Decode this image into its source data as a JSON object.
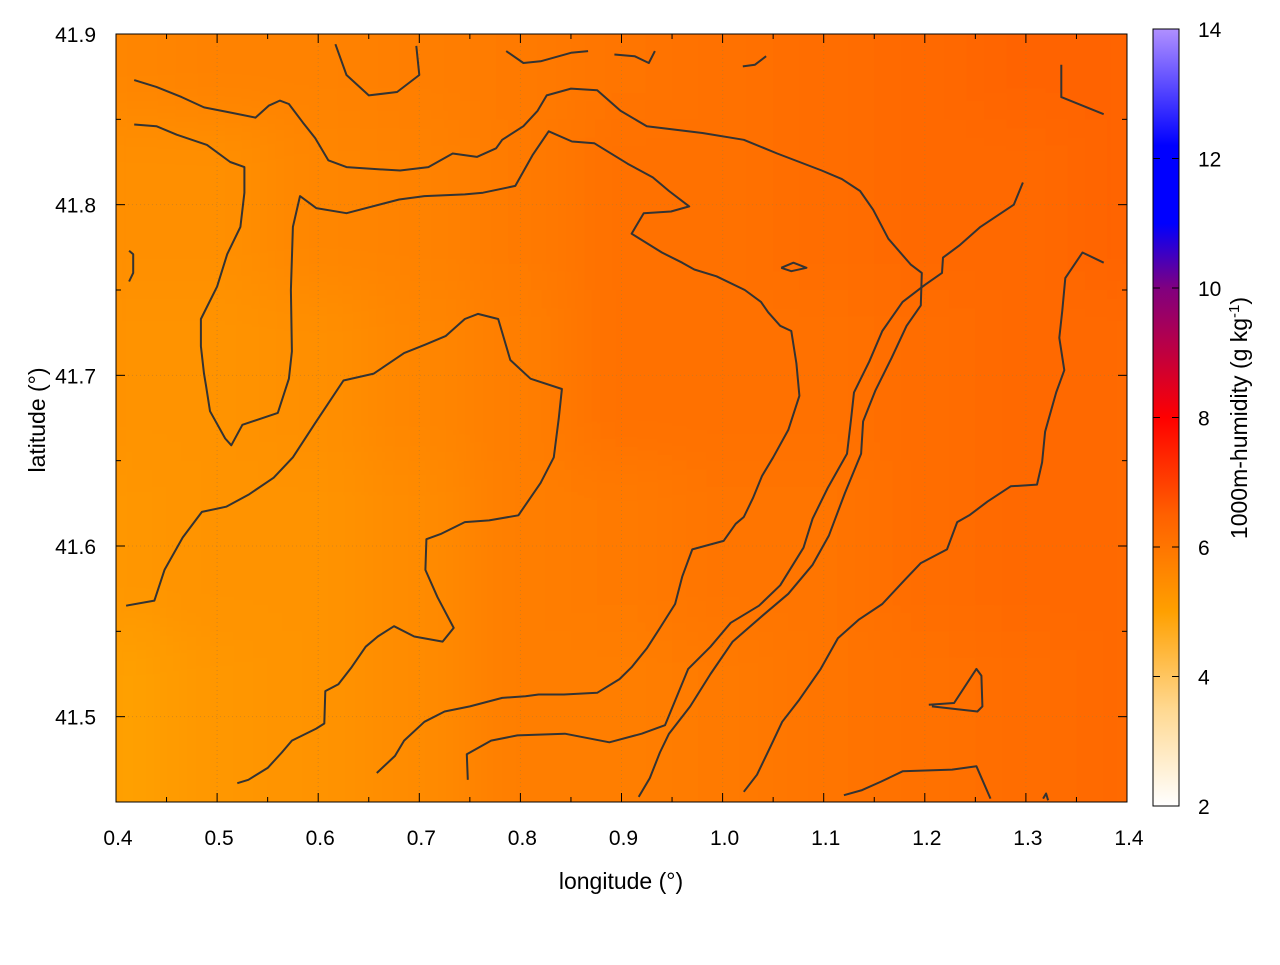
{
  "chart_data": {
    "type": "heatmap",
    "xlabel": "longitude (°)",
    "ylabel": "latitude (°)",
    "colorbar_label": "1000m-humidity (g kg",
    "colorbar_label_sup": "-1",
    "colorbar_label_end": ")",
    "xlim": [
      0.4,
      1.4
    ],
    "ylim": [
      41.45,
      41.9
    ],
    "x_ticks": [
      0.4,
      0.5,
      0.6,
      0.7,
      0.8,
      0.9,
      1.0,
      1.1,
      1.2,
      1.3,
      1.4
    ],
    "x_tick_labels": [
      "0.4",
      "0.5",
      "0.6",
      "0.7",
      "0.8",
      "0.9",
      "1.0",
      "1.1",
      "1.2",
      "1.3",
      "1.4"
    ],
    "y_ticks": [
      41.5,
      41.6,
      41.7,
      41.8,
      41.9
    ],
    "y_tick_labels": [
      "41.5",
      "41.6",
      "41.7",
      "41.8",
      "41.9"
    ],
    "colorbar_range": [
      2,
      14
    ],
    "colorbar_ticks": [
      2,
      4,
      6,
      8,
      10,
      12,
      14
    ],
    "colorbar_tick_labels": [
      "2",
      "4",
      "6",
      "8",
      "10",
      "12",
      "14"
    ],
    "colorbar_stops": [
      {
        "value": 2,
        "color": "#ffffff"
      },
      {
        "value": 3.5,
        "color": "#ffd890"
      },
      {
        "value": 5,
        "color": "#ffa000"
      },
      {
        "value": 6.5,
        "color": "#ff6000"
      },
      {
        "value": 8,
        "color": "#ff0000"
      },
      {
        "value": 10,
        "color": "#800080"
      },
      {
        "value": 11,
        "color": "#0000ff"
      },
      {
        "value": 12.2,
        "color": "#0000ff"
      },
      {
        "value": 14,
        "color": "#b090ff"
      }
    ],
    "grid": true,
    "humidity_field": {
      "x": [
        0.4,
        0.5,
        0.6,
        0.7,
        0.8,
        0.9,
        1.0,
        1.1,
        1.2,
        1.3,
        1.4
      ],
      "y": [
        41.9,
        41.8,
        41.7,
        41.6,
        41.5,
        41.45
      ],
      "values": [
        [
          5.6,
          5.7,
          5.7,
          5.8,
          5.9,
          6.0,
          6.1,
          6.2,
          6.3,
          6.4,
          6.4
        ],
        [
          5.4,
          5.4,
          5.6,
          5.7,
          5.9,
          6.1,
          6.1,
          6.2,
          6.3,
          6.3,
          6.4
        ],
        [
          5.3,
          5.3,
          5.4,
          5.6,
          5.8,
          6.1,
          6.1,
          6.1,
          6.2,
          6.3,
          6.3
        ],
        [
          5.2,
          5.3,
          5.3,
          5.5,
          5.8,
          5.9,
          6.0,
          6.0,
          6.2,
          6.3,
          6.3
        ],
        [
          5.0,
          5.2,
          5.3,
          5.5,
          5.8,
          5.8,
          5.9,
          6.0,
          6.1,
          6.2,
          6.3
        ],
        [
          5.0,
          5.2,
          5.3,
          5.5,
          5.8,
          5.8,
          5.9,
          6.0,
          6.1,
          6.2,
          6.3
        ]
      ]
    },
    "contour_color": "#333333",
    "contours": [
      [
        [
          0.418,
          41.873
        ],
        [
          0.44,
          41.869
        ],
        [
          0.465,
          41.863
        ],
        [
          0.487,
          41.857
        ],
        [
          0.513,
          41.854
        ],
        [
          0.538,
          41.851
        ],
        [
          0.551,
          41.858
        ],
        [
          0.562,
          41.861
        ],
        [
          0.571,
          41.859
        ],
        [
          0.585,
          41.848
        ],
        [
          0.597,
          41.839
        ],
        [
          0.61,
          41.826
        ],
        [
          0.628,
          41.822
        ],
        [
          0.652,
          41.821
        ],
        [
          0.681,
          41.82
        ],
        [
          0.709,
          41.822
        ],
        [
          0.733,
          41.83
        ],
        [
          0.757,
          41.828
        ],
        [
          0.776,
          41.833
        ],
        [
          0.782,
          41.838
        ],
        [
          0.803,
          41.846
        ],
        [
          0.817,
          41.855
        ],
        [
          0.826,
          41.864
        ],
        [
          0.85,
          41.868
        ],
        [
          0.876,
          41.867
        ],
        [
          0.899,
          41.855
        ],
        [
          0.925,
          41.846
        ],
        [
          0.98,
          41.842
        ],
        [
          1.021,
          41.838
        ],
        [
          1.054,
          41.83
        ],
        [
          1.098,
          41.82
        ],
        [
          1.118,
          41.815
        ],
        [
          1.136,
          41.808
        ],
        [
          1.149,
          41.797
        ],
        [
          1.164,
          41.78
        ],
        [
          1.186,
          41.765
        ],
        [
          1.197,
          41.76
        ],
        [
          1.196,
          41.741
        ],
        [
          1.182,
          41.729
        ],
        [
          1.167,
          41.71
        ],
        [
          1.151,
          41.691
        ],
        [
          1.139,
          41.673
        ],
        [
          1.137,
          41.654
        ],
        [
          1.121,
          41.631
        ],
        [
          1.105,
          41.606
        ],
        [
          1.089,
          41.589
        ],
        [
          1.065,
          41.572
        ],
        [
          1.041,
          41.56
        ],
        [
          1.01,
          41.544
        ],
        [
          0.988,
          41.525
        ],
        [
          0.968,
          41.506
        ],
        [
          0.947,
          41.49
        ],
        [
          0.938,
          41.479
        ],
        [
          0.928,
          41.464
        ],
        [
          0.917,
          41.453
        ]
      ],
      [
        [
          0.418,
          41.847
        ],
        [
          0.44,
          41.846
        ],
        [
          0.46,
          41.841
        ],
        [
          0.49,
          41.835
        ],
        [
          0.513,
          41.825
        ],
        [
          0.527,
          41.822
        ],
        [
          0.527,
          41.807
        ],
        [
          0.523,
          41.787
        ],
        [
          0.51,
          41.771
        ],
        [
          0.5,
          41.752
        ],
        [
          0.484,
          41.733
        ],
        [
          0.484,
          41.717
        ],
        [
          0.487,
          41.701
        ],
        [
          0.489,
          41.694
        ],
        [
          0.493,
          41.679
        ],
        [
          0.508,
          41.663
        ],
        [
          0.514,
          41.659
        ],
        [
          0.525,
          41.671
        ],
        [
          0.56,
          41.678
        ],
        [
          0.571,
          41.698
        ],
        [
          0.574,
          41.714
        ],
        [
          0.573,
          41.75
        ],
        [
          0.575,
          41.787
        ],
        [
          0.582,
          41.805
        ],
        [
          0.598,
          41.798
        ],
        [
          0.628,
          41.795
        ],
        [
          0.68,
          41.803
        ],
        [
          0.705,
          41.805
        ],
        [
          0.745,
          41.806
        ],
        [
          0.763,
          41.807
        ],
        [
          0.795,
          41.811
        ],
        [
          0.812,
          41.829
        ],
        [
          0.828,
          41.843
        ],
        [
          0.851,
          41.837
        ],
        [
          0.873,
          41.836
        ],
        [
          0.906,
          41.824
        ],
        [
          0.931,
          41.816
        ],
        [
          0.947,
          41.808
        ],
        [
          0.967,
          41.799
        ],
        [
          0.949,
          41.796
        ],
        [
          0.922,
          41.795
        ],
        [
          0.91,
          41.783
        ],
        [
          0.94,
          41.772
        ],
        [
          0.96,
          41.766
        ],
        [
          0.972,
          41.762
        ],
        [
          0.994,
          41.758
        ],
        [
          1.022,
          41.75
        ],
        [
          1.038,
          41.743
        ],
        [
          1.045,
          41.737
        ],
        [
          1.057,
          41.729
        ],
        [
          1.068,
          41.726
        ],
        [
          1.073,
          41.707
        ],
        [
          1.076,
          41.688
        ],
        [
          1.065,
          41.668
        ],
        [
          1.05,
          41.652
        ],
        [
          1.039,
          41.641
        ],
        [
          1.03,
          41.628
        ],
        [
          1.021,
          41.617
        ],
        [
          1.013,
          41.613
        ],
        [
          1.001,
          41.603
        ],
        [
          0.97,
          41.598
        ],
        [
          0.96,
          41.582
        ],
        [
          0.953,
          41.566
        ],
        [
          0.937,
          41.551
        ],
        [
          0.925,
          41.54
        ],
        [
          0.91,
          41.529
        ],
        [
          0.898,
          41.522
        ],
        [
          0.876,
          41.514
        ],
        [
          0.843,
          41.513
        ],
        [
          0.818,
          41.513
        ],
        [
          0.805,
          41.512
        ],
        [
          0.782,
          41.511
        ],
        [
          0.75,
          41.506
        ],
        [
          0.725,
          41.503
        ],
        [
          0.705,
          41.497
        ],
        [
          0.685,
          41.486
        ],
        [
          0.676,
          41.477
        ],
        [
          0.658,
          41.467
        ]
      ],
      [
        [
          0.41,
          41.565
        ],
        [
          0.438,
          41.568
        ],
        [
          0.448,
          41.586
        ],
        [
          0.466,
          41.605
        ],
        [
          0.485,
          41.62
        ],
        [
          0.509,
          41.623
        ],
        [
          0.531,
          41.63
        ],
        [
          0.556,
          41.64
        ],
        [
          0.575,
          41.652
        ],
        [
          0.597,
          41.672
        ],
        [
          0.625,
          41.697
        ],
        [
          0.655,
          41.701
        ],
        [
          0.685,
          41.713
        ],
        [
          0.706,
          41.718
        ],
        [
          0.726,
          41.723
        ],
        [
          0.745,
          41.733
        ],
        [
          0.758,
          41.736
        ],
        [
          0.778,
          41.733
        ],
        [
          0.79,
          41.709
        ],
        [
          0.81,
          41.698
        ],
        [
          0.841,
          41.692
        ],
        [
          0.838,
          41.675
        ],
        [
          0.833,
          41.652
        ],
        [
          0.82,
          41.637
        ],
        [
          0.798,
          41.618
        ],
        [
          0.769,
          41.615
        ],
        [
          0.745,
          41.614
        ],
        [
          0.721,
          41.607
        ],
        [
          0.707,
          41.604
        ],
        [
          0.706,
          41.586
        ],
        [
          0.718,
          41.57
        ],
        [
          0.734,
          41.552
        ],
        [
          0.723,
          41.544
        ],
        [
          0.695,
          41.547
        ],
        [
          0.675,
          41.553
        ],
        [
          0.659,
          41.547
        ],
        [
          0.647,
          41.541
        ],
        [
          0.633,
          41.529
        ],
        [
          0.62,
          41.519
        ],
        [
          0.607,
          41.515
        ],
        [
          0.606,
          41.496
        ],
        [
          0.598,
          41.493
        ],
        [
          0.574,
          41.486
        ],
        [
          0.564,
          41.479
        ],
        [
          0.55,
          41.47
        ],
        [
          0.531,
          41.463
        ],
        [
          0.52,
          41.461
        ]
      ],
      [
        [
          0.748,
          41.463
        ],
        [
          0.747,
          41.478
        ],
        [
          0.771,
          41.486
        ],
        [
          0.797,
          41.489
        ],
        [
          0.844,
          41.49
        ],
        [
          0.888,
          41.485
        ],
        [
          0.92,
          41.49
        ],
        [
          0.943,
          41.495
        ],
        [
          0.966,
          41.528
        ],
        [
          0.988,
          41.541
        ],
        [
          1.008,
          41.555
        ],
        [
          1.036,
          41.565
        ],
        [
          1.057,
          41.577
        ],
        [
          1.08,
          41.599
        ],
        [
          1.089,
          41.616
        ],
        [
          1.104,
          41.634
        ],
        [
          1.123,
          41.654
        ],
        [
          1.127,
          41.674
        ],
        [
          1.13,
          41.69
        ],
        [
          1.145,
          41.708
        ],
        [
          1.158,
          41.726
        ],
        [
          1.178,
          41.743
        ],
        [
          1.2,
          41.753
        ],
        [
          1.217,
          41.76
        ],
        [
          1.218,
          41.769
        ],
        [
          1.234,
          41.776
        ],
        [
          1.255,
          41.787
        ],
        [
          1.288,
          41.8
        ],
        [
          1.297,
          41.813
        ]
      ],
      [
        [
          1.021,
          41.456
        ],
        [
          1.034,
          41.466
        ],
        [
          1.047,
          41.482
        ],
        [
          1.059,
          41.497
        ],
        [
          1.076,
          41.51
        ],
        [
          1.097,
          41.528
        ],
        [
          1.114,
          41.546
        ],
        [
          1.135,
          41.557
        ],
        [
          1.158,
          41.566
        ],
        [
          1.18,
          41.58
        ],
        [
          1.196,
          41.59
        ],
        [
          1.222,
          41.598
        ],
        [
          1.232,
          41.614
        ],
        [
          1.244,
          41.618
        ],
        [
          1.262,
          41.626
        ],
        [
          1.285,
          41.635
        ],
        [
          1.311,
          41.636
        ],
        [
          1.316,
          41.649
        ],
        [
          1.319,
          41.667
        ],
        [
          1.33,
          41.69
        ],
        [
          1.338,
          41.703
        ],
        [
          1.333,
          41.722
        ],
        [
          1.336,
          41.738
        ],
        [
          1.339,
          41.757
        ],
        [
          1.356,
          41.772
        ],
        [
          1.377,
          41.766
        ]
      ],
      [
        [
          1.12,
          41.454
        ],
        [
          1.138,
          41.457
        ],
        [
          1.157,
          41.462
        ],
        [
          1.178,
          41.468
        ],
        [
          1.227,
          41.469
        ],
        [
          1.251,
          41.471
        ],
        [
          1.265,
          41.452
        ]
      ],
      [
        [
          1.204,
          41.507
        ],
        [
          1.229,
          41.508
        ],
        [
          1.251,
          41.528
        ],
        [
          1.256,
          41.524
        ],
        [
          1.257,
          41.506
        ],
        [
          1.252,
          41.503
        ],
        [
          1.207,
          41.506
        ]
      ],
      [
        [
          1.058,
          41.763
        ],
        [
          1.07,
          41.766
        ],
        [
          1.083,
          41.763
        ],
        [
          1.068,
          41.761
        ],
        [
          1.058,
          41.763
        ]
      ],
      [
        [
          0.617,
          41.894
        ],
        [
          0.628,
          41.876
        ],
        [
          0.65,
          41.864
        ],
        [
          0.678,
          41.866
        ],
        [
          0.7,
          41.876
        ],
        [
          0.697,
          41.893
        ]
      ],
      [
        [
          0.786,
          41.89
        ],
        [
          0.803,
          41.883
        ],
        [
          0.82,
          41.884
        ],
        [
          0.85,
          41.889
        ],
        [
          0.867,
          41.89
        ]
      ],
      [
        [
          0.893,
          41.888
        ],
        [
          0.913,
          41.887
        ],
        [
          0.927,
          41.883
        ],
        [
          0.933,
          41.89
        ]
      ],
      [
        [
          1.02,
          41.881
        ],
        [
          1.032,
          41.882
        ],
        [
          1.043,
          41.887
        ]
      ],
      [
        [
          1.335,
          41.882
        ],
        [
          1.335,
          41.863
        ],
        [
          1.377,
          41.853
        ]
      ],
      [
        [
          0.413,
          41.773
        ],
        [
          0.417,
          41.771
        ],
        [
          0.417,
          41.76
        ],
        [
          0.413,
          41.755
        ]
      ],
      [
        [
          1.317,
          41.452
        ],
        [
          1.32,
          41.455
        ],
        [
          1.322,
          41.451
        ]
      ]
    ]
  }
}
